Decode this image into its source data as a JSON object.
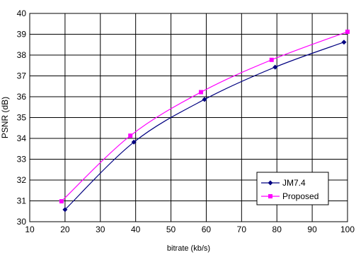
{
  "chart_data": {
    "type": "line",
    "title": "",
    "xlabel": "bitrate (kb/s)",
    "ylabel": "PSNR (dB)",
    "xlim": [
      10,
      100
    ],
    "ylim": [
      30,
      40
    ],
    "x_ticks": [
      "10",
      "20",
      "30",
      "40",
      "50",
      "60",
      "70",
      "80",
      "90",
      "100"
    ],
    "y_ticks": [
      "30",
      "31",
      "32",
      "33",
      "34",
      "35",
      "36",
      "37",
      "38",
      "39",
      "40"
    ],
    "grid": true,
    "legend_position": "bottom-right",
    "series": [
      {
        "name": "JM7.4",
        "color": "#000080",
        "marker": "diamond",
        "x": [
          20,
          39.5,
          59.5,
          79.5,
          99
        ],
        "y": [
          30.58,
          33.82,
          35.87,
          37.42,
          38.62
        ]
      },
      {
        "name": "Proposed",
        "color": "#ff00ff",
        "marker": "square",
        "x": [
          19,
          38.5,
          58.5,
          78.5,
          100
        ],
        "y": [
          30.98,
          34.13,
          36.22,
          37.77,
          39.12
        ]
      }
    ]
  }
}
